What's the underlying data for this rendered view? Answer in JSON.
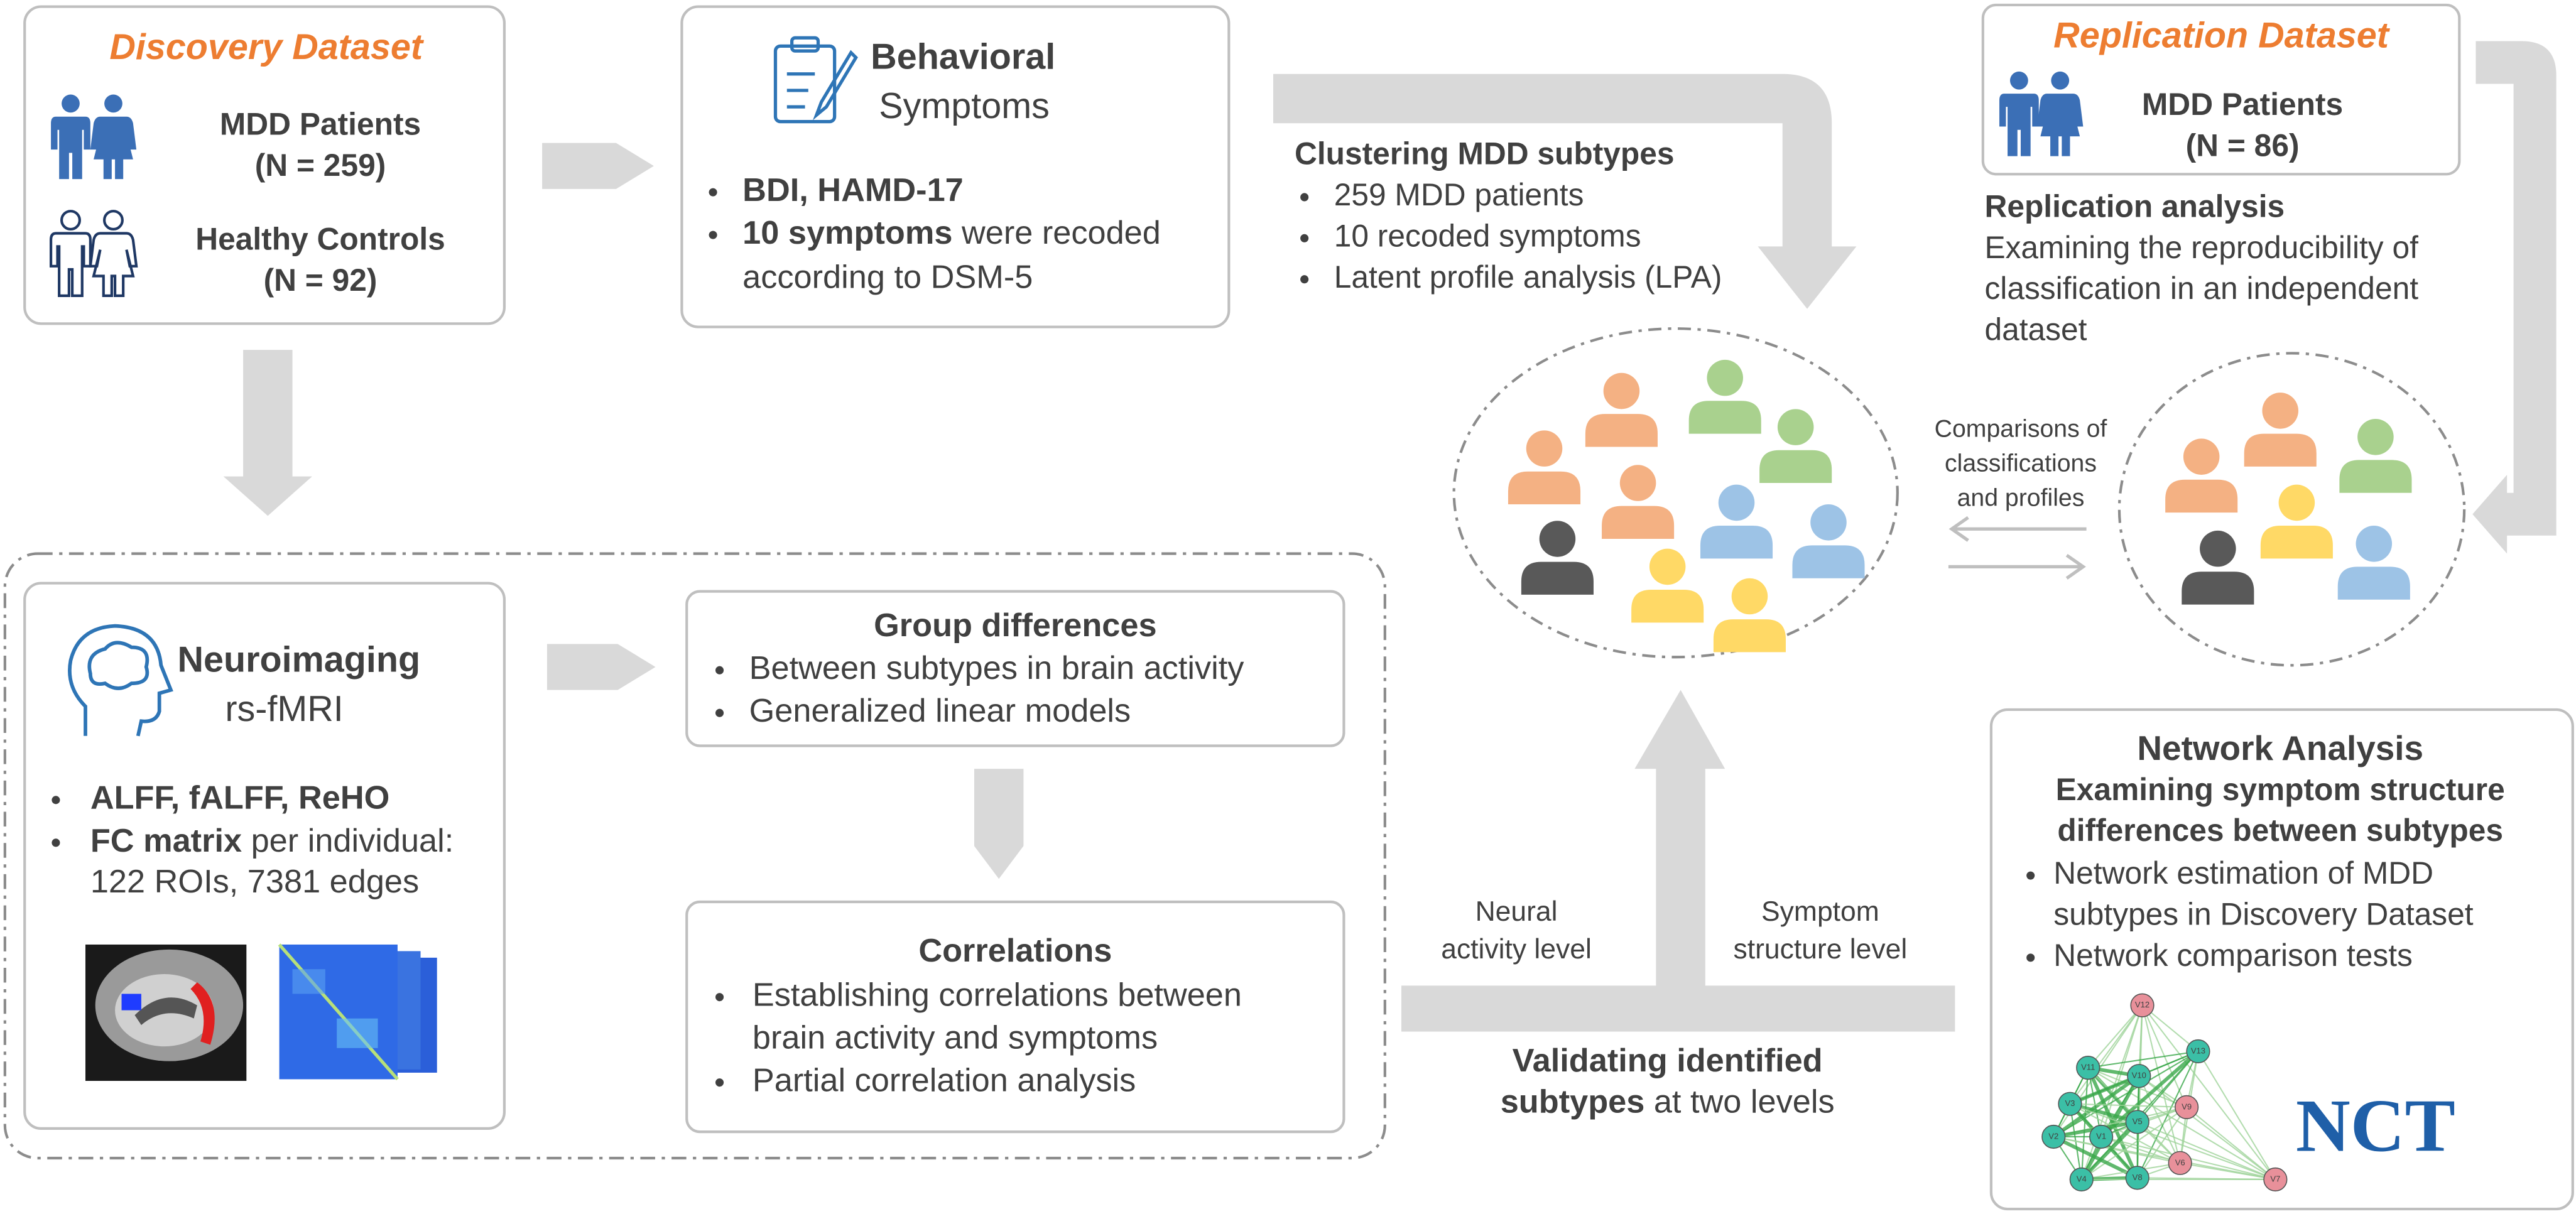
{
  "discovery": {
    "title": "Discovery Dataset",
    "patients_label": "MDD Patients",
    "patients_n": "(N = 259)",
    "controls_label": "Healthy Controls",
    "controls_n": "(N = 92)"
  },
  "behavioral": {
    "title": "Behavioral",
    "subtitle": "Symptoms",
    "item1": "BDI, HAMD-17",
    "item2_bold": "10 symptoms",
    "item2_line1": "were recoded",
    "item2_line2": "according to DSM-5"
  },
  "clustering": {
    "title": "Clustering MDD subtypes",
    "items": [
      "259 MDD patients",
      "10 recoded symptoms",
      "Latent profile analysis (LPA)"
    ]
  },
  "replication": {
    "title": "Replication Dataset",
    "patients_label": "MDD Patients",
    "patients_n": "(N = 86)",
    "analysis_title": "Replication analysis",
    "analysis_lines": [
      "Examining the reproducibility of",
      "classification in an independent",
      "dataset"
    ]
  },
  "comparisons": {
    "lines": [
      "Comparisons of",
      "classifications",
      "and profiles"
    ]
  },
  "neuroimaging": {
    "title": "Neuroimaging",
    "subtitle": "rs-fMRI",
    "item1": "ALFF, fALFF, ReHO",
    "item2_bold": "FC matrix",
    "item2_line1": "per individual:",
    "item2_line2": "122 ROIs, 7381 edges"
  },
  "group_differences": {
    "title": "Group differences",
    "items": [
      "Between subtypes in brain activity",
      "Generalized linear models"
    ]
  },
  "correlations": {
    "title": "Correlations",
    "item1_lines": [
      "Establishing correlations between",
      "brain activity and symptoms"
    ],
    "item2": "Partial correlation analysis"
  },
  "validation": {
    "left_lines": [
      "Neural",
      "activity level"
    ],
    "right_lines": [
      "Symptom",
      "structure level"
    ],
    "line1": "Validating identified",
    "line2_bold": "subtypes",
    "line2_rest": "at two levels"
  },
  "network": {
    "title": "Network Analysis",
    "subtitle_lines": [
      "Examining symptom structure",
      "differences between subtypes"
    ],
    "item1_lines": [
      "Network estimation of MDD",
      "subtypes in Discovery Dataset"
    ],
    "item2": "Network comparison tests",
    "nodes": [
      "V12",
      "V11",
      "V10",
      "V13",
      "V3",
      "V9",
      "V1",
      "V2",
      "V5",
      "V6",
      "V4",
      "V8",
      "V7"
    ],
    "logo": "NCT"
  }
}
